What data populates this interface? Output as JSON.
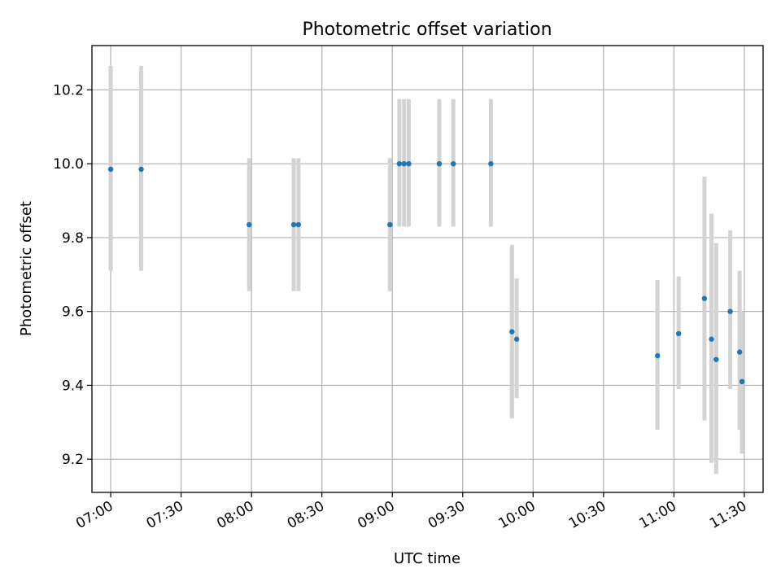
{
  "chart_data": {
    "type": "scatter",
    "title": "Photometric offset variation",
    "xlabel": "UTC time",
    "ylabel": "Photometric offset",
    "x_unit": "time",
    "xlim": [
      "06:52",
      "11:38"
    ],
    "ylim": [
      9.11,
      10.32
    ],
    "x_ticks": [
      "07:00",
      "07:30",
      "08:00",
      "08:30",
      "09:00",
      "09:30",
      "10:00",
      "10:30",
      "11:00",
      "11:30"
    ],
    "y_ticks": [
      "9.2",
      "9.4",
      "9.6",
      "9.8",
      "10.0",
      "10.2"
    ],
    "grid": true,
    "colors": {
      "point": "#1f77b4",
      "errorbar": "#d3d3d3",
      "grid": "#b0b0b0"
    },
    "points": [
      {
        "x": "07:00",
        "y": 9.985,
        "ylow": 9.71,
        "yhigh": 10.265
      },
      {
        "x": "07:13",
        "y": 9.985,
        "ylow": 9.71,
        "yhigh": 10.265
      },
      {
        "x": "07:59",
        "y": 9.835,
        "ylow": 9.655,
        "yhigh": 10.015
      },
      {
        "x": "08:18",
        "y": 9.835,
        "ylow": 9.655,
        "yhigh": 10.015
      },
      {
        "x": "08:20",
        "y": 9.835,
        "ylow": 9.655,
        "yhigh": 10.015
      },
      {
        "x": "08:59",
        "y": 9.835,
        "ylow": 9.655,
        "yhigh": 10.015
      },
      {
        "x": "09:03",
        "y": 10.0,
        "ylow": 9.83,
        "yhigh": 10.175
      },
      {
        "x": "09:05",
        "y": 10.0,
        "ylow": 9.83,
        "yhigh": 10.175
      },
      {
        "x": "09:07",
        "y": 10.0,
        "ylow": 9.83,
        "yhigh": 10.175
      },
      {
        "x": "09:20",
        "y": 10.0,
        "ylow": 9.83,
        "yhigh": 10.175
      },
      {
        "x": "09:26",
        "y": 10.0,
        "ylow": 9.83,
        "yhigh": 10.175
      },
      {
        "x": "09:42",
        "y": 10.0,
        "ylow": 9.83,
        "yhigh": 10.175
      },
      {
        "x": "09:51",
        "y": 9.545,
        "ylow": 9.31,
        "yhigh": 9.78
      },
      {
        "x": "09:53",
        "y": 9.525,
        "ylow": 9.365,
        "yhigh": 9.69
      },
      {
        "x": "10:53",
        "y": 9.48,
        "ylow": 9.28,
        "yhigh": 9.685
      },
      {
        "x": "11:02",
        "y": 9.54,
        "ylow": 9.39,
        "yhigh": 9.695
      },
      {
        "x": "11:13",
        "y": 9.635,
        "ylow": 9.305,
        "yhigh": 9.965
      },
      {
        "x": "11:16",
        "y": 9.525,
        "ylow": 9.19,
        "yhigh": 9.865
      },
      {
        "x": "11:18",
        "y": 9.47,
        "ylow": 9.16,
        "yhigh": 9.785
      },
      {
        "x": "11:24",
        "y": 9.6,
        "ylow": 9.39,
        "yhigh": 9.82
      },
      {
        "x": "11:28",
        "y": 9.49,
        "ylow": 9.28,
        "yhigh": 9.71
      },
      {
        "x": "11:29",
        "y": 9.41,
        "ylow": 9.215,
        "yhigh": 9.6
      }
    ]
  }
}
